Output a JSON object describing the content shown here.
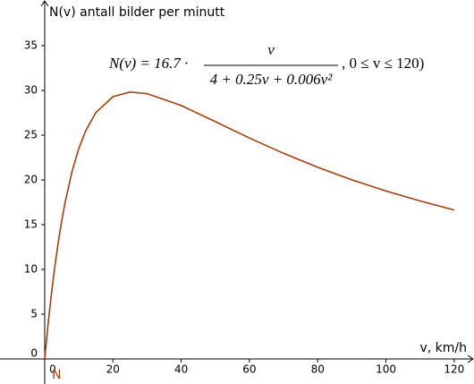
{
  "chart_data": {
    "type": "line",
    "title": "N(v) antall bilder per minutt",
    "x_label": "v, km/h",
    "formula": {
      "prefix": "N(v) = 16.7 ·",
      "numerator": "v",
      "denominator": "4 + 0.25v + 0.006v²",
      "suffix": ", 0 ≤ v ≤ 120)"
    },
    "x": [
      0,
      1,
      2,
      3,
      4,
      5,
      6,
      8,
      10,
      12,
      15,
      20,
      25,
      30,
      40,
      50,
      60,
      70,
      80,
      90,
      100,
      110,
      120
    ],
    "series": [
      {
        "name": "N",
        "color": "#a0400f",
        "values": [
          0,
          3.92,
          7.38,
          10.43,
          13.11,
          15.46,
          17.53,
          20.93,
          23.52,
          25.48,
          27.53,
          29.3,
          29.82,
          29.64,
          28.31,
          26.51,
          24.68,
          22.97,
          21.41,
          20.01,
          18.76,
          17.65,
          16.64
        ]
      }
    ],
    "xlim": [
      -13.1,
      125.8
    ],
    "ylim": [
      -2.8,
      40.1
    ],
    "xticks": [
      0,
      20,
      40,
      60,
      80,
      100,
      120
    ],
    "yticks": [
      0,
      5,
      10,
      15,
      20,
      25,
      30,
      35
    ],
    "grid": false
  }
}
